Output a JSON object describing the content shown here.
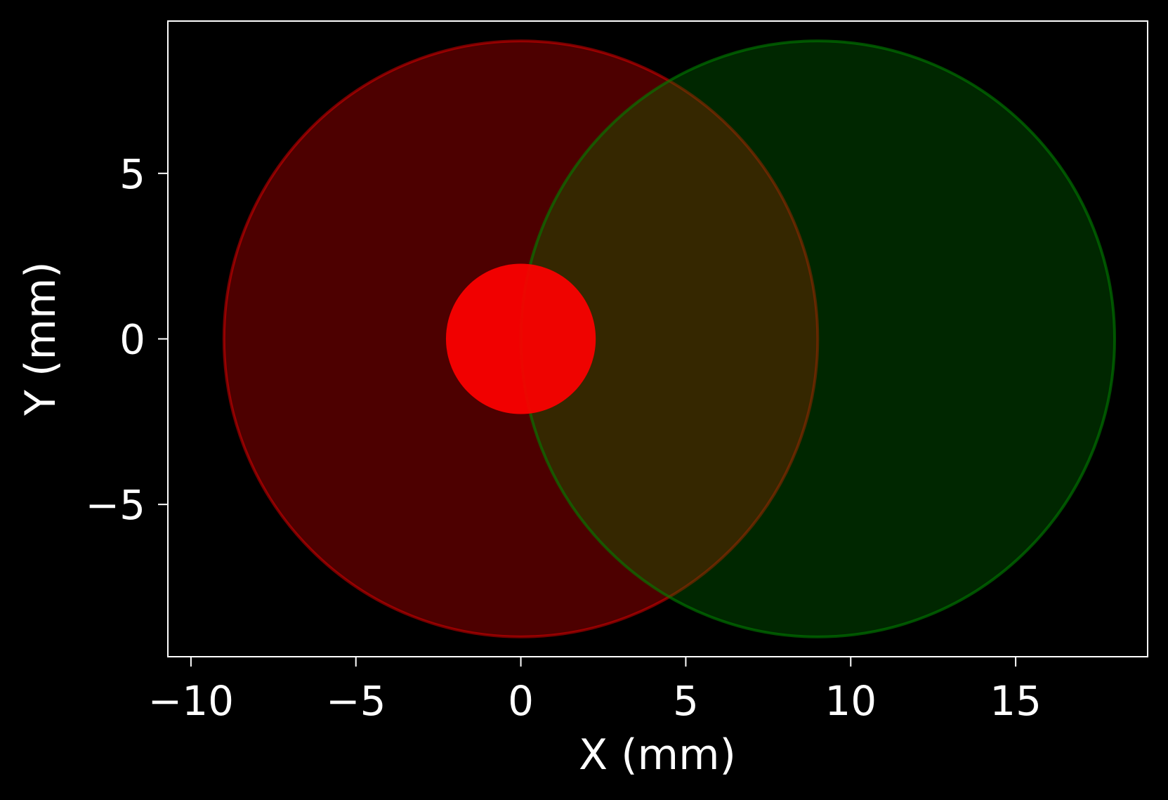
{
  "chart_data": {
    "type": "scatter",
    "title": "",
    "xlabel": "X (mm)",
    "ylabel": "Y (mm)",
    "xlim": [
      -10.7,
      19.0
    ],
    "ylim": [
      -9.6,
      9.6
    ],
    "grid": false,
    "legend": "none",
    "x_ticks": [
      {
        "value": -10,
        "label": "−10"
      },
      {
        "value": -5,
        "label": "−5"
      },
      {
        "value": 0,
        "label": "0"
      },
      {
        "value": 5,
        "label": "5"
      },
      {
        "value": 10,
        "label": "10"
      },
      {
        "value": 15,
        "label": "15"
      }
    ],
    "y_ticks": [
      {
        "value": 5,
        "label": "5"
      },
      {
        "value": 0,
        "label": "0"
      },
      {
        "value": -5,
        "label": "−5"
      }
    ],
    "shapes": [
      {
        "kind": "circle",
        "cx": 0,
        "cy": 0,
        "r": 9.0,
        "fill": "#ff0000",
        "fill_opacity": 0.3,
        "stroke": "#ff0000",
        "stroke_opacity": 0.45
      },
      {
        "kind": "circle",
        "cx": 9.0,
        "cy": 0,
        "r": 9.0,
        "fill": "#008000",
        "fill_opacity": 0.3,
        "stroke": "#008000",
        "stroke_opacity": 0.6
      },
      {
        "kind": "circle",
        "cx": 0,
        "cy": 0,
        "r": 2.27,
        "fill": "#ff0000",
        "fill_opacity": 0.92,
        "stroke": "none",
        "stroke_opacity": 0
      }
    ]
  },
  "colors": {
    "background": "#000000",
    "axes": "#ffffff",
    "text": "#ffffff"
  }
}
